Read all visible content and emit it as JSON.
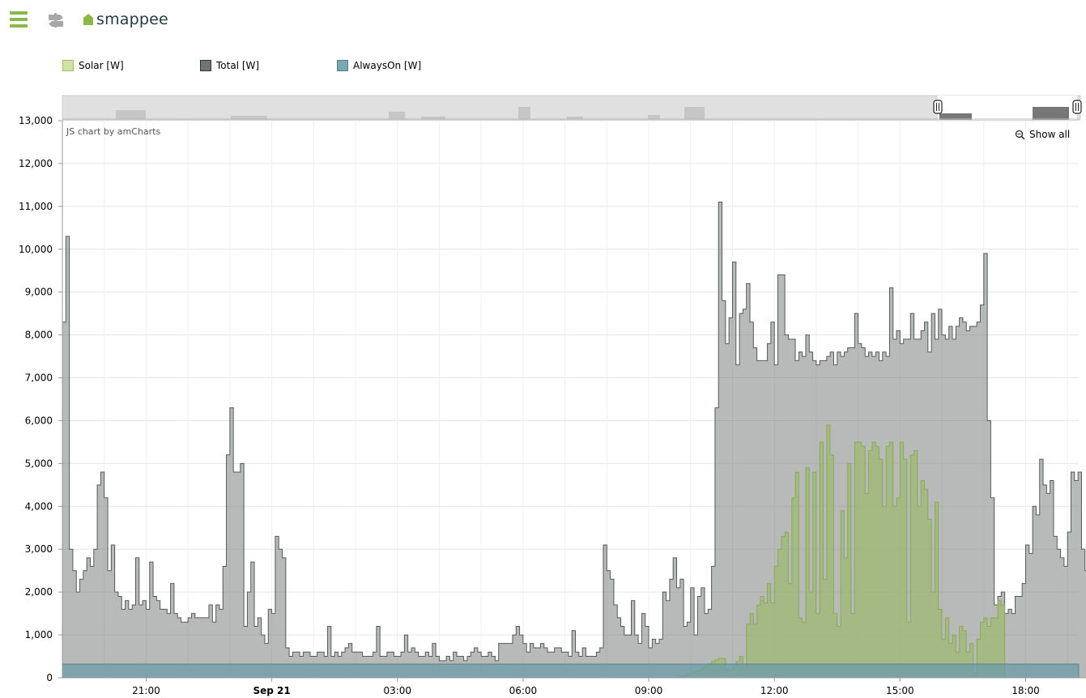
{
  "app": {
    "brand_name": "smappee",
    "icons": {
      "menu": "hamburger-menu-icon",
      "swap": "swap-arrows-icon",
      "logo": "house-logo-icon",
      "zoom": "magnifier-icon"
    },
    "brand_color": "#8bb84a"
  },
  "chart_meta": {
    "credit": "JS chart by amCharts",
    "show_all_label": "Show all"
  },
  "chart_data": {
    "type": "area",
    "step": true,
    "x_interval_minutes": 5,
    "x_start": "Sep 20 19:00",
    "x_end": "Sep 21 19:15",
    "x_ticks": [
      "21:00",
      "Sep 21",
      "03:00",
      "06:00",
      "09:00",
      "12:00",
      "15:00",
      "18:00"
    ],
    "y_ticks": [
      "0",
      "1,000",
      "2,000",
      "3,000",
      "4,000",
      "5,000",
      "6,000",
      "7,000",
      "8,000",
      "9,000",
      "10,000",
      "11,000",
      "12,000",
      "13,000"
    ],
    "ylim": [
      0,
      13000
    ],
    "grid": true,
    "legend_position": "top-left",
    "series": [
      {
        "name": "Solar [W]",
        "color": "#cfe3a3",
        "values": [
          0,
          0,
          0,
          0,
          0,
          0,
          0,
          0,
          0,
          0,
          0,
          0,
          0,
          0,
          0,
          0,
          0,
          0,
          0,
          0,
          0,
          0,
          0,
          0,
          0,
          0,
          0,
          0,
          0,
          0,
          0,
          0,
          0,
          0,
          0,
          0,
          0,
          0,
          0,
          0,
          0,
          0,
          0,
          0,
          0,
          0,
          0,
          0,
          0,
          0,
          0,
          0,
          0,
          0,
          0,
          0,
          0,
          0,
          0,
          0,
          0,
          0,
          0,
          0,
          0,
          0,
          0,
          0,
          0,
          0,
          0,
          0,
          0,
          0,
          0,
          0,
          0,
          0,
          0,
          0,
          0,
          0,
          0,
          0,
          0,
          0,
          0,
          0,
          0,
          0,
          0,
          0,
          0,
          0,
          0,
          0,
          0,
          0,
          0,
          0,
          0,
          0,
          0,
          0,
          0,
          0,
          0,
          0,
          0,
          0,
          0,
          0,
          0,
          0,
          0,
          0,
          0,
          0,
          0,
          0,
          0,
          0,
          0,
          0,
          0,
          0,
          0,
          0,
          0,
          0,
          0,
          0,
          0,
          0,
          0,
          0,
          0,
          0,
          0,
          0,
          0,
          0,
          0,
          0,
          0,
          0,
          0,
          0,
          0,
          0,
          0,
          0,
          0,
          0,
          0,
          0,
          0,
          0,
          0,
          0,
          0,
          0,
          0,
          0,
          0,
          0,
          0,
          0,
          0,
          0,
          0,
          0,
          0,
          0,
          0,
          0,
          10,
          30,
          50,
          80,
          110,
          140,
          180,
          230,
          280,
          330,
          380,
          420,
          450,
          450,
          200,
          180,
          250,
          380,
          500,
          200,
          1250,
          1500,
          1250,
          1700,
          1900,
          1750,
          2200,
          1750,
          2600,
          3000,
          3300,
          3400,
          2200,
          4200,
          4800,
          1400,
          1300,
          4900,
          2000,
          4800,
          1500,
          5500,
          2300,
          5900,
          5200,
          1500,
          1200,
          3900,
          2800,
          5000,
          1500,
          5500,
          5500,
          5400,
          4300,
          5300,
          5500,
          5400,
          5100,
          4000,
          5400,
          5500,
          4000,
          4200,
          5500,
          5100,
          1300,
          5200,
          5300,
          4000,
          4600,
          4400,
          3700,
          2000,
          4100,
          1600,
          900,
          1400,
          800,
          1000,
          600,
          1200,
          1100,
          600,
          800,
          100,
          900,
          1300,
          1400,
          1200,
          1400,
          1400,
          1800,
          1700,
          0,
          0,
          0,
          0,
          0,
          0,
          0,
          0,
          0,
          0,
          0,
          0,
          0,
          0,
          0,
          0,
          0,
          0,
          0,
          0,
          0,
          0,
          0,
          0,
          0,
          0,
          0,
          0,
          0,
          0,
          0,
          0,
          0,
          0,
          0,
          0,
          0
        ]
      },
      {
        "name": "Total [W]",
        "color": "#6f7572",
        "values": [
          8300,
          10300,
          3000,
          2500,
          2000,
          2300,
          2500,
          2800,
          2600,
          3000,
          4500,
          4800,
          4200,
          2500,
          3100,
          2000,
          1900,
          1600,
          1800,
          1600,
          1700,
          2800,
          1700,
          1800,
          1600,
          2700,
          1900,
          1800,
          1600,
          1600,
          1500,
          2200,
          1500,
          1400,
          1300,
          1300,
          1400,
          1500,
          1400,
          1400,
          1400,
          1400,
          1700,
          1300,
          1700,
          1600,
          2600,
          5200,
          6300,
          4800,
          4800,
          5000,
          1200,
          2000,
          2700,
          1200,
          1400,
          1000,
          800,
          1600,
          1500,
          3300,
          3000,
          2800,
          700,
          500,
          600,
          600,
          500,
          600,
          600,
          500,
          500,
          600,
          600,
          500,
          1200,
          500,
          600,
          500,
          600,
          700,
          800,
          600,
          600,
          600,
          500,
          500,
          500,
          600,
          1200,
          500,
          500,
          600,
          600,
          500,
          500,
          600,
          1000,
          600,
          700,
          600,
          500,
          500,
          600,
          500,
          800,
          500,
          400,
          400,
          500,
          400,
          600,
          500,
          500,
          400,
          500,
          600,
          700,
          600,
          500,
          500,
          600,
          500,
          400,
          800,
          800,
          800,
          800,
          1000,
          1200,
          1000,
          800,
          600,
          800,
          700,
          700,
          800,
          700,
          600,
          600,
          700,
          700,
          600,
          600,
          500,
          1100,
          600,
          500,
          700,
          500,
          500,
          500,
          600,
          700,
          3100,
          2500,
          2300,
          1700,
          1400,
          1200,
          1000,
          1000,
          1800,
          1000,
          800,
          1500,
          1200,
          700,
          900,
          800,
          900,
          2000,
          1800,
          2300,
          2800,
          2100,
          2300,
          1200,
          1300,
          2100,
          1000,
          1900,
          2100,
          1500,
          1600,
          2600,
          6300,
          11100,
          8800,
          7800,
          8400,
          9700,
          7300,
          8500,
          8600,
          9200,
          8300,
          7700,
          7400,
          7400,
          7400,
          7800,
          8300,
          7300,
          9400,
          9400,
          8000,
          7900,
          7900,
          7400,
          7600,
          7500,
          8000,
          7600,
          7400,
          7300,
          7400,
          7400,
          7500,
          7600,
          7300,
          7600,
          7500,
          7600,
          7700,
          7700,
          8500,
          7800,
          7700,
          7500,
          7600,
          7500,
          7600,
          7400,
          7600,
          7500,
          9100,
          7900,
          8100,
          7800,
          7900,
          7900,
          8500,
          7900,
          7900,
          8100,
          8300,
          7600,
          8500,
          7900,
          8600,
          8000,
          7900,
          8200,
          7900,
          8200,
          8400,
          8300,
          8100,
          8200,
          8200,
          8300,
          8700,
          9900,
          6000,
          4200,
          1700,
          1900,
          2000,
          1500,
          1600,
          1500,
          1900,
          1900,
          2200,
          3100,
          2900,
          4000,
          3800,
          5100,
          4500,
          4300,
          4600,
          3300,
          3000,
          2800,
          2600,
          3400,
          4800,
          4600,
          4800,
          3000,
          2500,
          2400,
          2100
        ]
      },
      {
        "name": "AlwaysOn [W]",
        "color": "#6c9ba8",
        "value": 320
      }
    ]
  }
}
